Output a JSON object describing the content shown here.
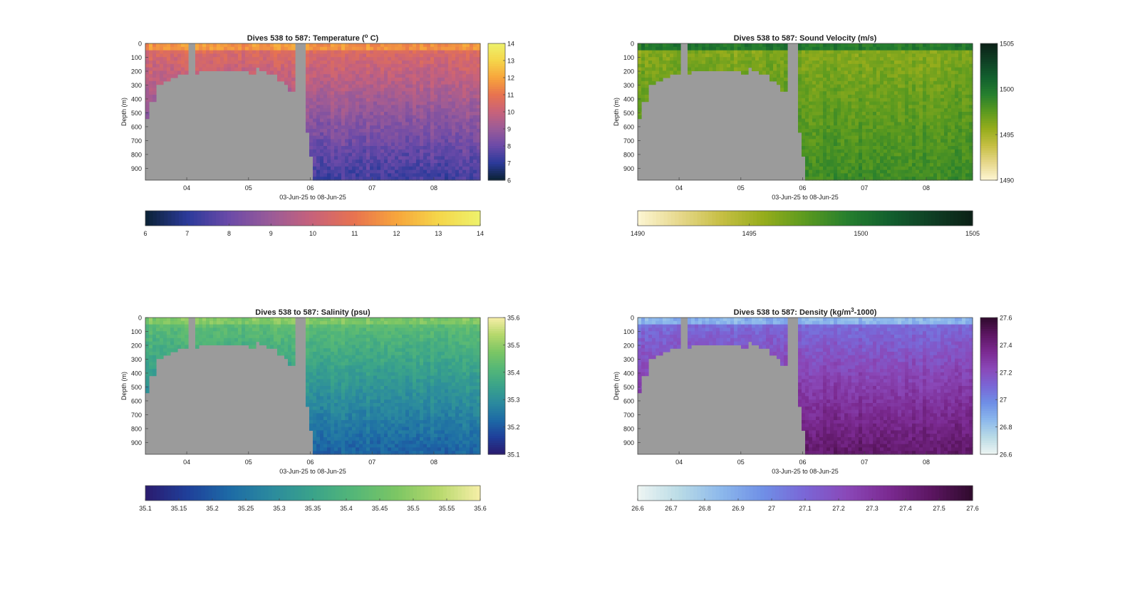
{
  "chart_data": [
    {
      "type": "heatmap",
      "title": "Dives 538 to 587: Temperature (",
      "title_sup": "o",
      "title_tail": " C)",
      "xlabel": "03-Jun-25 to 08-Jun-25",
      "ylabel": "Depth (m)",
      "xticks": [
        "04",
        "05",
        "06",
        "07",
        "08"
      ],
      "yticks": [
        "0",
        "100",
        "200",
        "300",
        "400",
        "500",
        "600",
        "700",
        "800",
        "900"
      ],
      "clim": [
        6,
        14
      ],
      "colorbar_ticks": [
        "6",
        "7",
        "8",
        "9",
        "10",
        "11",
        "12",
        "13",
        "14"
      ],
      "hcolorbar_ticks": [
        "6",
        "7",
        "8",
        "9",
        "10",
        "11",
        "12",
        "13",
        "14"
      ],
      "colormap": [
        "#0b2234",
        "#2b3a9a",
        "#6b4aa8",
        "#9a5b98",
        "#c8627a",
        "#e8734f",
        "#f7a53c",
        "#f5d64a",
        "#eef26c"
      ],
      "surface_value": 11.7,
      "upper_value": 10.6,
      "deep_value": 7.4
    },
    {
      "type": "heatmap",
      "title": "Dives 538 to 587: Sound Velocity (m/s)",
      "xlabel": "03-Jun-25 to 08-Jun-25",
      "ylabel": "Depth (m)",
      "xticks": [
        "04",
        "05",
        "06",
        "07",
        "08"
      ],
      "yticks": [
        "0",
        "100",
        "200",
        "300",
        "400",
        "500",
        "600",
        "700",
        "800",
        "900"
      ],
      "clim": [
        1490,
        1505
      ],
      "colorbar_ticks": [
        "1490",
        "1495",
        "1500",
        "1505"
      ],
      "hcolorbar_ticks": [
        "1490",
        "1495",
        "1500",
        "1505"
      ],
      "colormap": [
        "#fdf6d3",
        "#e7d88c",
        "#c6bf44",
        "#96ad1c",
        "#5b9a1f",
        "#267f2e",
        "#12602e",
        "#0f3f24",
        "#0b2016"
      ],
      "surface_value": 1499.8,
      "upper_value": 1496.2,
      "deep_value": 1498.6
    },
    {
      "type": "heatmap",
      "title": "Dives 538 to 587: Salinity (psu)",
      "xlabel": "03-Jun-25 to 08-Jun-25",
      "ylabel": "Depth (m)",
      "xticks": [
        "04",
        "05",
        "06",
        "07",
        "08"
      ],
      "yticks": [
        "0",
        "100",
        "200",
        "300",
        "400",
        "500",
        "600",
        "700",
        "800",
        "900"
      ],
      "clim": [
        35.1,
        35.6
      ],
      "colorbar_ticks": [
        "35.1",
        "35.2",
        "35.3",
        "35.4",
        "35.5",
        "35.6"
      ],
      "hcolorbar_ticks": [
        "35.1",
        "35.15",
        "35.2",
        "35.25",
        "35.3",
        "35.35",
        "35.4",
        "35.45",
        "35.5",
        "35.55",
        "35.6"
      ],
      "colormap": [
        "#2a1b6e",
        "#1f3f9a",
        "#1d6aa6",
        "#2b8a9e",
        "#3aa38a",
        "#55b777",
        "#7cc664",
        "#b6d86c",
        "#f7efa8"
      ],
      "surface_value": 35.48,
      "upper_value": 35.43,
      "deep_value": 35.22
    },
    {
      "type": "heatmap",
      "title": "Dives 538 to 587: Density (kg/m",
      "title_sup": "3",
      "title_tail": "-1000)",
      "xlabel": "03-Jun-25 to 08-Jun-25",
      "ylabel": "Depth (m)",
      "xticks": [
        "04",
        "05",
        "06",
        "07",
        "08"
      ],
      "yticks": [
        "0",
        "100",
        "200",
        "300",
        "400",
        "500",
        "600",
        "700",
        "800",
        "900"
      ],
      "clim": [
        26.6,
        27.6
      ],
      "colorbar_ticks": [
        "26.6",
        "26.8",
        "27",
        "27.2",
        "27.4",
        "27.6"
      ],
      "hcolorbar_ticks": [
        "26.6",
        "26.7",
        "26.8",
        "26.9",
        "27",
        "27.1",
        "27.2",
        "27.3",
        "27.4",
        "27.5",
        "27.6"
      ],
      "colormap": [
        "#eef5f3",
        "#b9dbe6",
        "#8cb8ec",
        "#6f8fe6",
        "#7a66d6",
        "#8a48b8",
        "#7b2a91",
        "#5c1662",
        "#2f0a2c"
      ],
      "surface_value": 26.86,
      "upper_value": 27.08,
      "deep_value": 27.45
    }
  ]
}
